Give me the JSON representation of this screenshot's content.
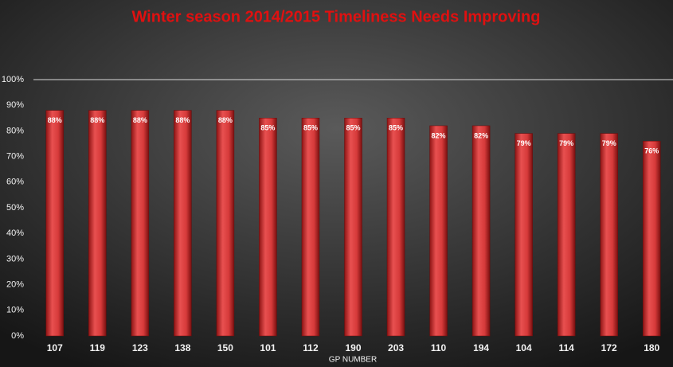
{
  "chart_data": {
    "type": "bar",
    "title": "Winter season  2014/2015 Timeliness  Needs Improving",
    "x_label": "GP NUMBER",
    "categories": [
      "107",
      "119",
      "123",
      "138",
      "150",
      "101",
      "112",
      "190",
      "203",
      "110",
      "194",
      "104",
      "114",
      "172",
      "180"
    ],
    "values": [
      88,
      88,
      88,
      88,
      88,
      85,
      85,
      85,
      85,
      82,
      82,
      79,
      79,
      79,
      76
    ],
    "value_labels": [
      "88%",
      "88%",
      "88%",
      "88%",
      "88%",
      "85%",
      "85%",
      "85%",
      "85%",
      "82%",
      "82%",
      "79%",
      "79%",
      "79%",
      "76%"
    ],
    "color": "#d63a3a",
    "ylim": [
      0,
      100
    ],
    "yticks": [
      {
        "value": 0,
        "label": "0%"
      },
      {
        "value": 10,
        "label": "10%"
      },
      {
        "value": 20,
        "label": "20%"
      },
      {
        "value": 30,
        "label": "30%"
      },
      {
        "value": 40,
        "label": "40%"
      },
      {
        "value": 50,
        "label": "50%"
      },
      {
        "value": 60,
        "label": "60%"
      },
      {
        "value": 70,
        "label": "70%"
      },
      {
        "value": 80,
        "label": "80%"
      },
      {
        "value": 90,
        "label": "90%"
      },
      {
        "value": 100,
        "label": "100%"
      }
    ],
    "grid": false
  }
}
